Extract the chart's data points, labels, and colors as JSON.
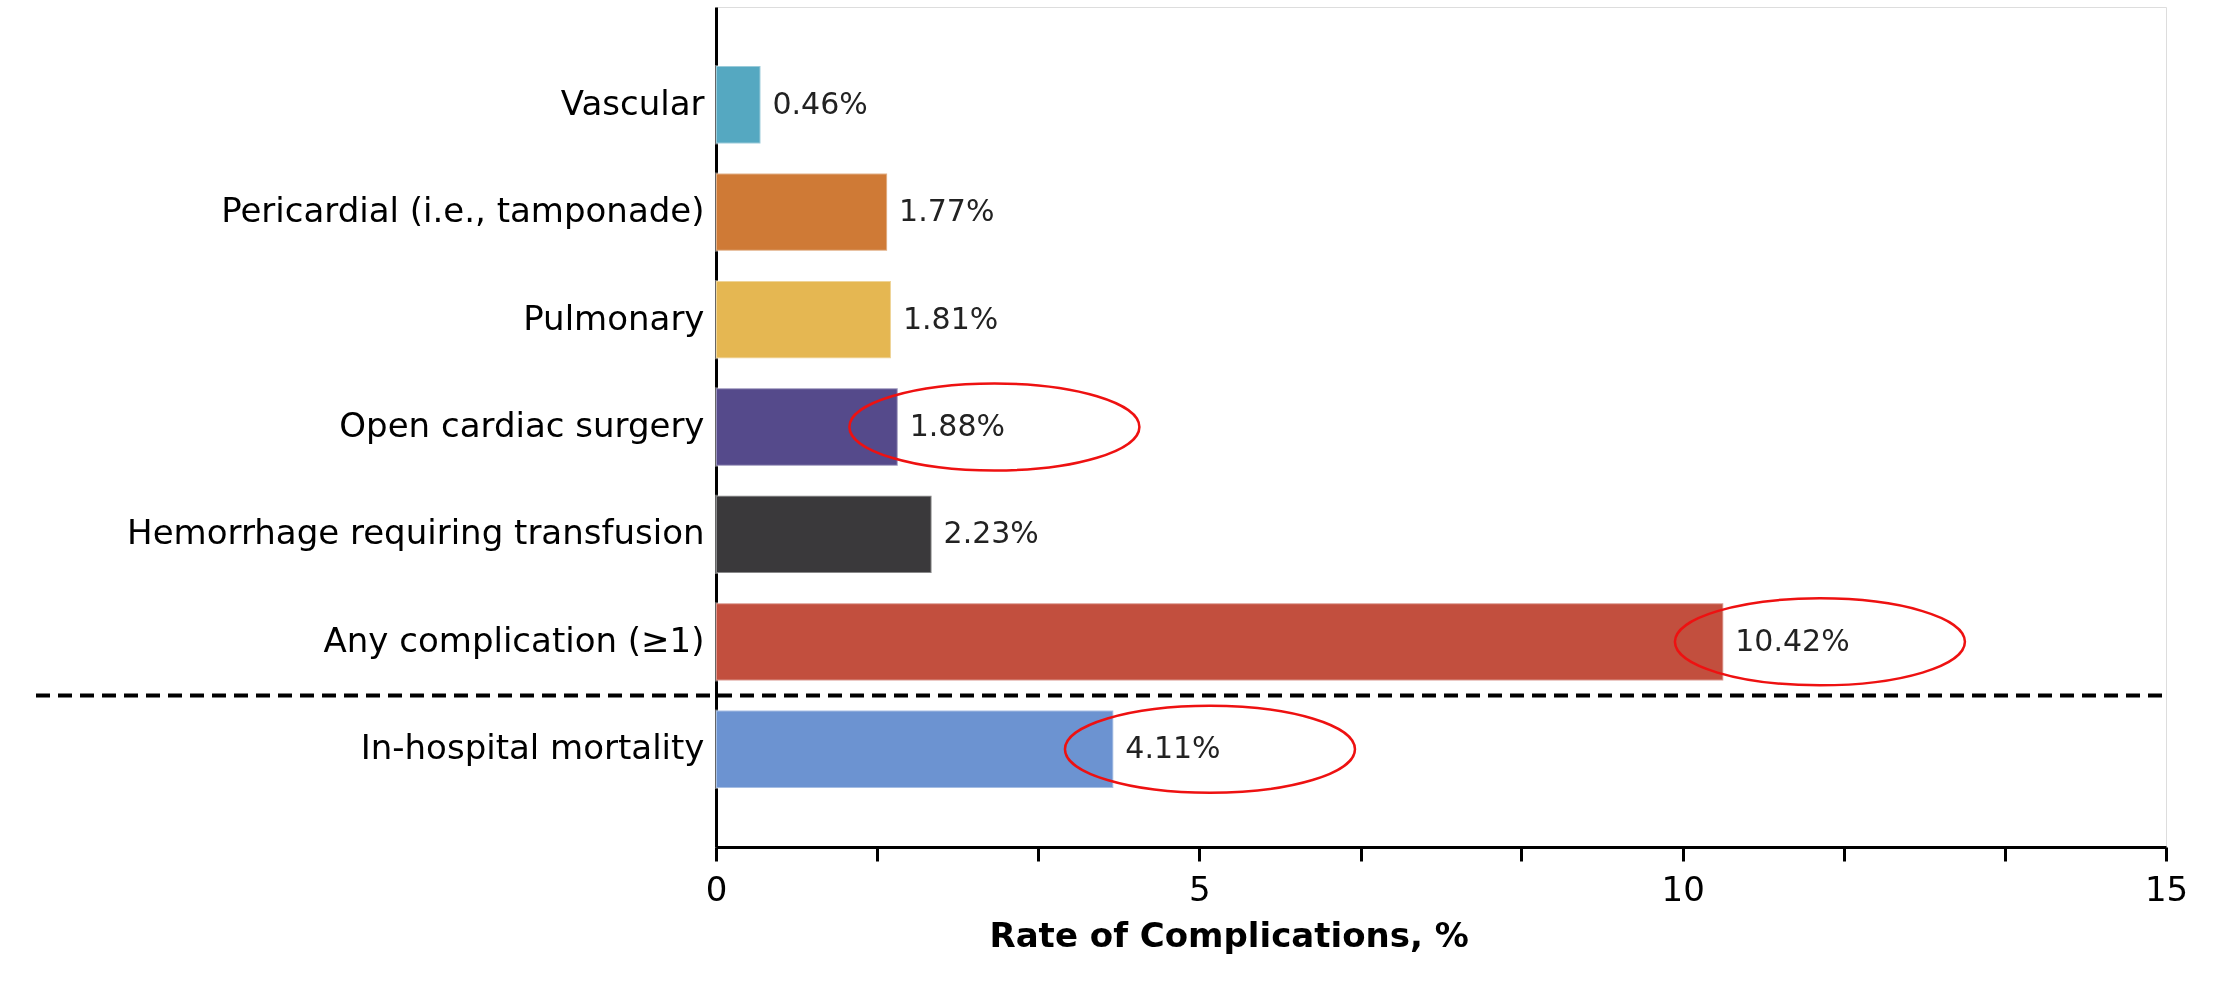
{
  "chart_data": {
    "type": "bar",
    "orientation": "horizontal",
    "xlabel": "Rate of Complications, %",
    "categories": [
      "Vascular",
      "Pericardial (i.e., tamponade)",
      "Pulmonary",
      "Open cardiac surgery",
      "Hemorrhage requiring transfusion",
      "Any complication (≥1)",
      "In-hospital mortality"
    ],
    "values": [
      0.46,
      1.77,
      1.81,
      1.88,
      2.23,
      10.42,
      4.11
    ],
    "colors": [
      "#55a8c1",
      "#cf7a36",
      "#e5b752",
      "#554a8b",
      "#3a393b",
      "#c24f3e",
      "#6c93d1"
    ],
    "value_labels": [
      "0.46%",
      "1.77%",
      "1.81%",
      "1.88%",
      "2.23%",
      "10.42%",
      "4.11%"
    ],
    "xticks": [
      0,
      {
        "value": 1.67,
        "label": null
      },
      {
        "value": 3.33,
        "label": null
      },
      5,
      {
        "value": 6.67,
        "label": null
      },
      {
        "value": 8.33,
        "label": null
      },
      10,
      {
        "value": 11.67,
        "label": null
      },
      {
        "value": 13.33,
        "label": null
      },
      15
    ],
    "xlim": [
      0,
      15
    ]
  }
}
